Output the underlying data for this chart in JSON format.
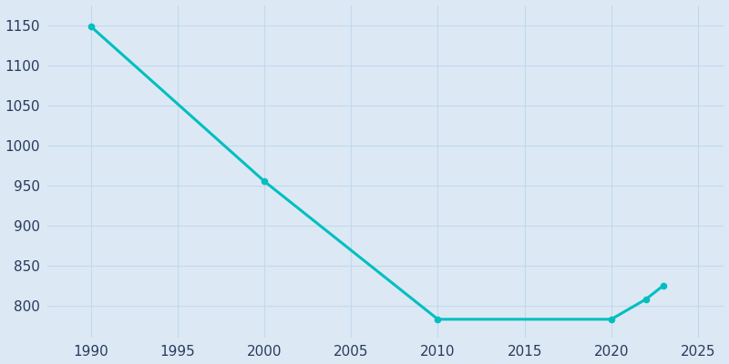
{
  "years": [
    1990,
    2000,
    2010,
    2020,
    2022,
    2023
  ],
  "population": [
    1148,
    955,
    783,
    783,
    808,
    825
  ],
  "line_color": "#00BFBF",
  "marker_color": "#00BFBF",
  "background_color": "#dce9f5",
  "grid_color": "#c2d8ec",
  "text_color": "#2b3a5c",
  "xlim": [
    1987.5,
    2026.5
  ],
  "ylim": [
    760,
    1175
  ],
  "xticks": [
    1990,
    1995,
    2000,
    2005,
    2010,
    2015,
    2020,
    2025
  ],
  "yticks": [
    800,
    850,
    900,
    950,
    1000,
    1050,
    1100,
    1150
  ],
  "line_width": 2.2,
  "marker_size": 4.5,
  "figsize": [
    8.0,
    4.0
  ],
  "dpi": 100
}
